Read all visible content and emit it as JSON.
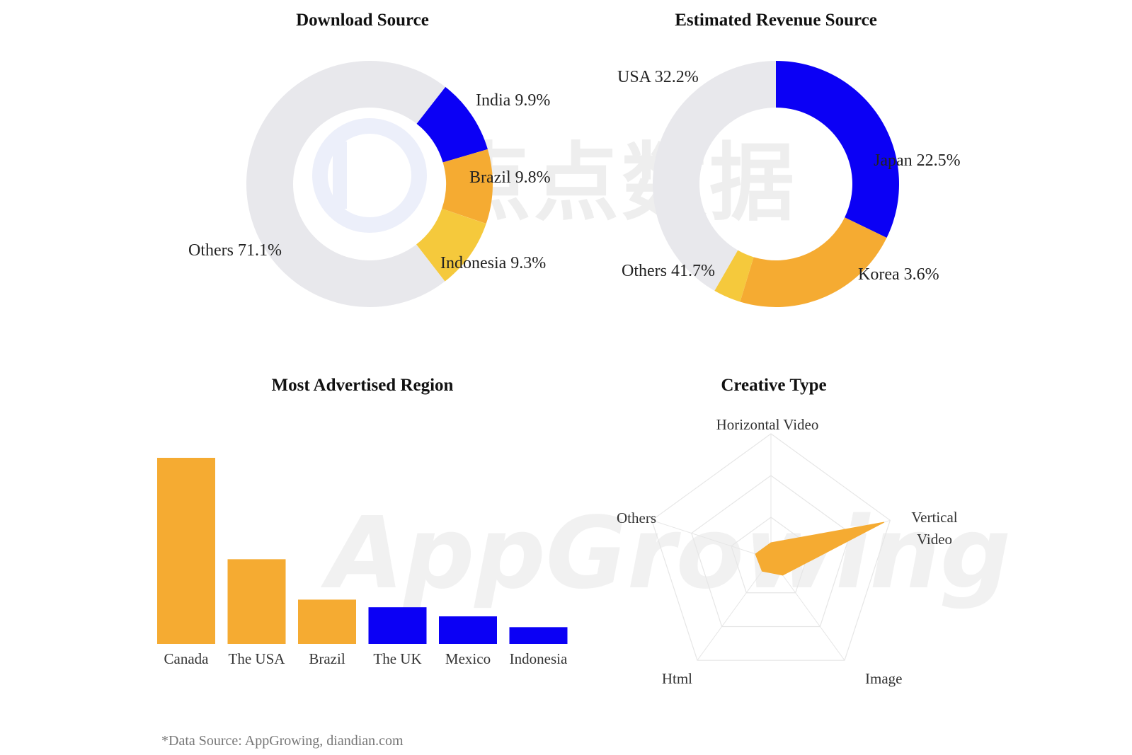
{
  "colors": {
    "blue": "#0b00f5",
    "orange": "#f5ab32",
    "yellow": "#f5c93c",
    "grey": "#e8e8ec",
    "grid": "#e6e6e6"
  },
  "watermarks": {
    "top": "点点数据",
    "bottom": "AppGrowing"
  },
  "source_note": "*Data Source: AppGrowing, diandian.com",
  "chart_data": [
    {
      "type": "pie",
      "title": "Download Source",
      "slices": [
        {
          "label": "India",
          "value": 9.9,
          "display": "India 9.9%",
          "color": "#0b00f5"
        },
        {
          "label": "Brazil",
          "value": 9.8,
          "display": "Brazil 9.8%",
          "color": "#f5ab32"
        },
        {
          "label": "Indonesia",
          "value": 9.3,
          "display": "Indonesia 9.3%",
          "color": "#f5c93c"
        },
        {
          "label": "Others",
          "value": 71.1,
          "display": "Others 71.1%",
          "color": "#e8e8ec"
        }
      ]
    },
    {
      "type": "pie",
      "title": "Estimated Revenue Source",
      "slices": [
        {
          "label": "USA",
          "value": 32.2,
          "display": "USA 32.2%",
          "color": "#0b00f5"
        },
        {
          "label": "Japan",
          "value": 22.5,
          "display": "Japan 22.5%",
          "color": "#f5ab32"
        },
        {
          "label": "Korea",
          "value": 3.6,
          "display": "Korea 3.6%",
          "color": "#f5c93c"
        },
        {
          "label": "Others",
          "value": 41.7,
          "display": "Others 41.7%",
          "color": "#e8e8ec"
        }
      ]
    },
    {
      "type": "bar",
      "title": "Most Advertised Region",
      "categories": [
        "Canada",
        "The USA",
        "Brazil",
        "The UK",
        "Mexico",
        "Indonesia"
      ],
      "values": [
        100,
        45.5,
        23.8,
        19.7,
        14.8,
        9.0
      ],
      "colors": [
        "#f5ab32",
        "#f5ab32",
        "#f5ab32",
        "#0b00f5",
        "#0b00f5",
        "#0b00f5"
      ],
      "ylim": [
        0,
        100
      ]
    },
    {
      "type": "radar",
      "title": "Creative Type",
      "axes": [
        "Horizontal Video",
        "Vertical Video",
        "Image",
        "Html",
        "Others"
      ],
      "values": [
        0.13,
        0.95,
        0.16,
        0.12,
        0.13
      ],
      "max": 1,
      "rings": 3,
      "color": "#f5ab32"
    }
  ]
}
